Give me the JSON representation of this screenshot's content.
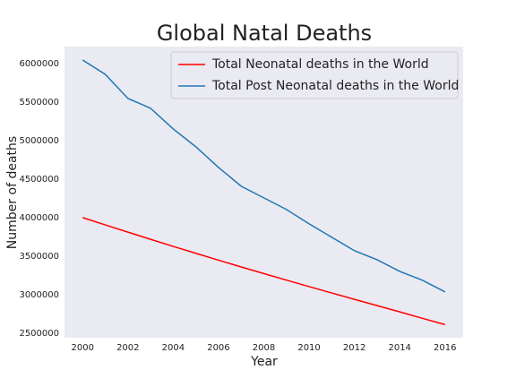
{
  "chart_data": {
    "type": "line",
    "title": "Global Natal Deaths",
    "xlabel": "Year",
    "ylabel": "Number of deaths",
    "x": [
      2000,
      2001,
      2002,
      2003,
      2004,
      2005,
      2006,
      2007,
      2008,
      2009,
      2010,
      2011,
      2012,
      2013,
      2014,
      2015,
      2016
    ],
    "series": [
      {
        "name": "Total Neonatal deaths in the World",
        "color": "#ff0000",
        "values": [
          4000000,
          3905000,
          3811000,
          3718000,
          3626000,
          3536000,
          3447000,
          3359000,
          3273000,
          3188000,
          3104000,
          3021000,
          2939000,
          2857000,
          2776000,
          2692000,
          2610000
        ]
      },
      {
        "name": "Total Post Neonatal deaths in the World",
        "color": "#1f77b4",
        "values": [
          6046000,
          5860000,
          5547000,
          5419000,
          5151000,
          4919000,
          4651000,
          4407000,
          4256000,
          4105000,
          3919000,
          3744000,
          3570000,
          3453000,
          3302000,
          3186000,
          3035000
        ]
      }
    ],
    "xlim": [
      1999.2,
      2016.8
    ],
    "xticks": [
      2000,
      2002,
      2004,
      2006,
      2008,
      2010,
      2012,
      2014,
      2016
    ],
    "ylim": [
      2440000,
      6220000
    ],
    "yticks": [
      2500000,
      3000000,
      3500000,
      4000000,
      4500000,
      5000000,
      5500000,
      6000000
    ],
    "grid": false,
    "legend": "upper right"
  }
}
